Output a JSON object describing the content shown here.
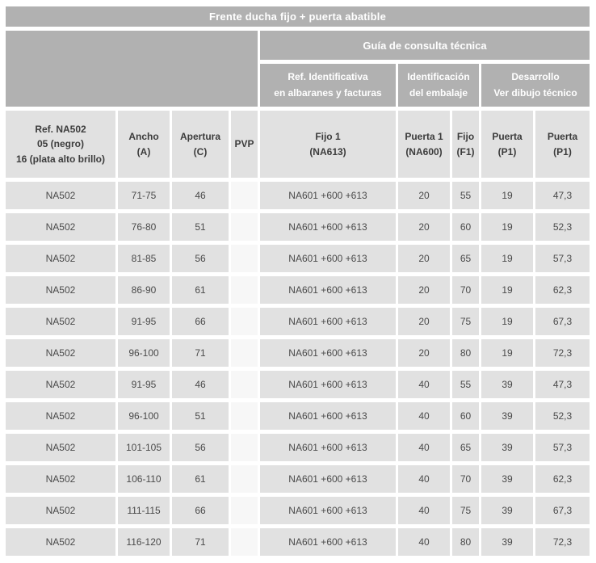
{
  "title": "Frente ducha fijo + puerta abatible",
  "guide_header": "Guía de consulta técnica",
  "group_headers": [
    {
      "label": "Ref. Identificativa\nen albaranes y facturas"
    },
    {
      "label": "Identificación\ndel embalaje"
    },
    {
      "label": "Desarrollo\nVer dibujo técnico"
    }
  ],
  "column_headers": [
    "Ref. NA502\n05 (negro)\n16 (plata alto brillo)",
    "Ancho\n(A)",
    "Apertura\n(C)",
    "PVP",
    "Fijo 1\n(NA613)",
    "Puerta 1\n(NA600)",
    "Fijo\n(F1)",
    "Puerta\n(P1)",
    "Puerta\n(P1)"
  ],
  "rows": [
    {
      "cells": [
        "NA502",
        "71-75",
        "46",
        "",
        "NA601 +600 +613",
        "20",
        "55",
        "19",
        "47,3"
      ]
    },
    {
      "cells": [
        "NA502",
        "76-80",
        "51",
        "",
        "NA601 +600 +613",
        "20",
        "60",
        "19",
        "52,3"
      ]
    },
    {
      "cells": [
        "NA502",
        "81-85",
        "56",
        "",
        "NA601 +600 +613",
        "20",
        "65",
        "19",
        "57,3"
      ]
    },
    {
      "cells": [
        "NA502",
        "86-90",
        "61",
        "",
        "NA601 +600 +613",
        "20",
        "70",
        "19",
        "62,3"
      ]
    },
    {
      "cells": [
        "NA502",
        "91-95",
        "66",
        "",
        "NA601 +600 +613",
        "20",
        "75",
        "19",
        "67,3"
      ]
    },
    {
      "cells": [
        "NA502",
        "96-100",
        "71",
        "",
        "NA601 +600 +613",
        "20",
        "80",
        "19",
        "72,3"
      ]
    },
    {
      "cells": [
        "NA502",
        "91-95",
        "46",
        "",
        "NA601 +600 +613",
        "40",
        "55",
        "39",
        "47,3"
      ]
    },
    {
      "cells": [
        "NA502",
        "96-100",
        "51",
        "",
        "NA601 +600 +613",
        "40",
        "60",
        "39",
        "52,3"
      ]
    },
    {
      "cells": [
        "NA502",
        "101-105",
        "56",
        "",
        "NA601 +600 +613",
        "40",
        "65",
        "39",
        "57,3"
      ]
    },
    {
      "cells": [
        "NA502",
        "106-110",
        "61",
        "",
        "NA601 +600 +613",
        "40",
        "70",
        "39",
        "62,3"
      ]
    },
    {
      "cells": [
        "NA502",
        "111-115",
        "66",
        "",
        "NA601 +600 +613",
        "40",
        "75",
        "39",
        "67,3"
      ]
    },
    {
      "cells": [
        "NA502",
        "116-120",
        "71",
        "",
        "NA601 +600 +613",
        "40",
        "80",
        "39",
        "72,3"
      ]
    }
  ],
  "colors": {
    "header_gray": "#b1b1b1",
    "cell_gray": "#e1e1e1",
    "pvp_cell": "#f7f7f7",
    "header_text": "#ffffff",
    "cell_text": "#4a4a4a",
    "colhead_text": "#3c3c3c"
  }
}
